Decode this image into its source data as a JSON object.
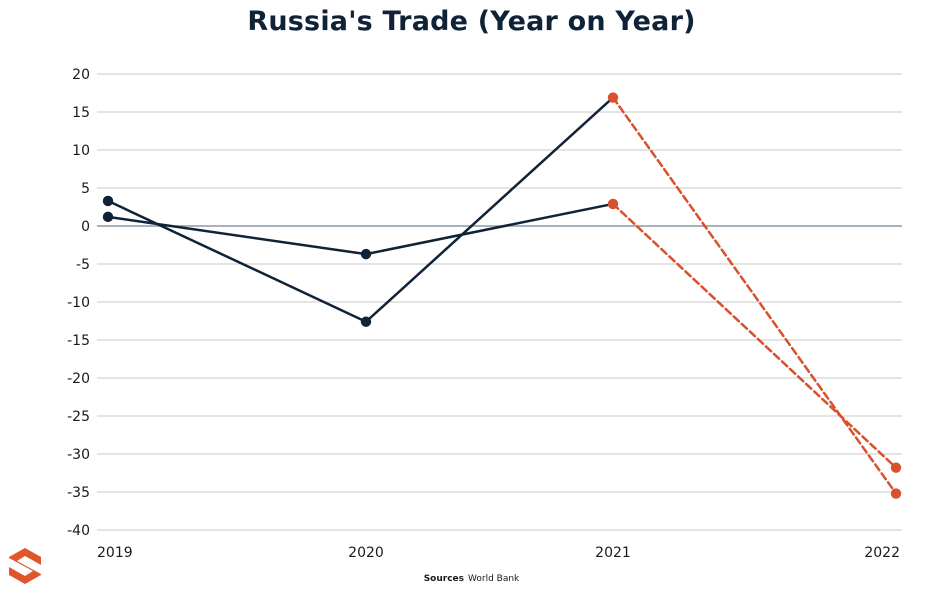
{
  "colors": {
    "title": "#0f2236",
    "series_actual": "#0f2236",
    "series_forecast": "#d9512c",
    "grid": "#c9c9c9",
    "zero_line": "#8a9aa6",
    "logo": "#e0552c"
  },
  "icons": {
    "logo": "brand-s-logo-icon"
  },
  "source": {
    "label": "Sources",
    "value": "World Bank"
  },
  "chart_data": {
    "type": "line",
    "title": "Russia's Trade (Year on Year)",
    "xlabel": "",
    "ylabel": "",
    "categories": [
      "2019",
      "2020",
      "2021",
      "2022"
    ],
    "ylim": [
      -40,
      20
    ],
    "yticks": [
      20,
      15,
      10,
      5,
      0,
      -5,
      -10,
      -15,
      -20,
      -25,
      -30,
      -35,
      -40
    ],
    "grid": true,
    "legend": "none",
    "series": [
      {
        "values": [
          3.3,
          -12.6,
          16.9,
          -35.2
        ],
        "style": "solid-then-dashed",
        "dashed_from_index": 2
      },
      {
        "values": [
          1.2,
          -3.7,
          2.9,
          -31.8
        ],
        "style": "solid-then-dashed",
        "dashed_from_index": 2
      }
    ]
  }
}
